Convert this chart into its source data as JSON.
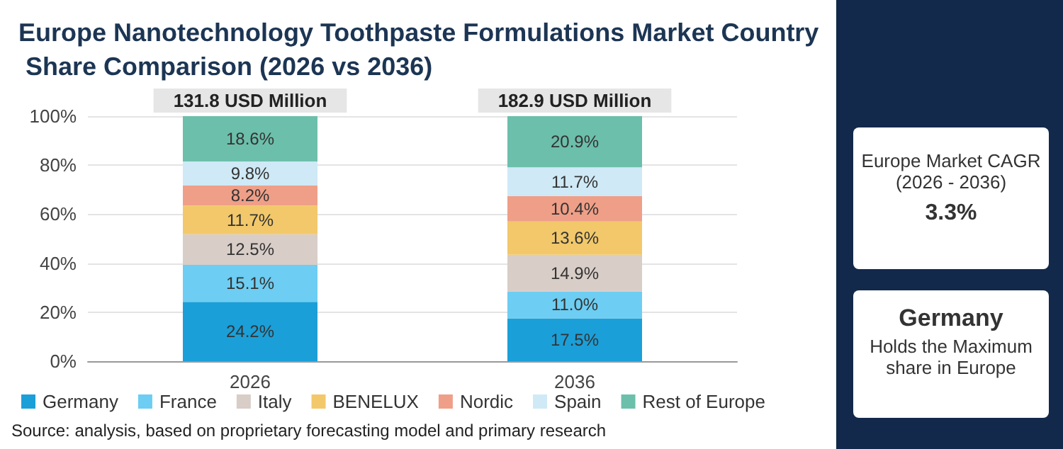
{
  "chart_data": {
    "type": "bar",
    "stacked": true,
    "title": "Europe Nanotechnology Toothpaste Formulations Market Country Share Comparison (2026 vs 2036)",
    "categories": [
      "2026",
      "2036"
    ],
    "series": [
      {
        "name": "Germany",
        "color": "#1b9fd8",
        "values": [
          24.2,
          17.5
        ],
        "value_labels": [
          "24.2%",
          "17.5%"
        ]
      },
      {
        "name": "France",
        "color": "#6dcdf2",
        "values": [
          15.1,
          11.0
        ],
        "value_labels": [
          "15.1%",
          "11.0%"
        ]
      },
      {
        "name": "Italy",
        "color": "#d8cdc7",
        "values": [
          12.5,
          14.9
        ],
        "value_labels": [
          "12.5%",
          "14.9%"
        ]
      },
      {
        "name": "BENELUX",
        "color": "#f2c86a",
        "values": [
          11.7,
          13.6
        ],
        "value_labels": [
          "11.7%",
          "13.6%"
        ]
      },
      {
        "name": "Nordic",
        "color": "#ef9f88",
        "values": [
          8.2,
          10.4
        ],
        "value_labels": [
          "8.2%",
          "10.4%"
        ]
      },
      {
        "name": "Spain",
        "color": "#cfe9f6",
        "values": [
          9.8,
          11.7
        ],
        "value_labels": [
          "9.8%",
          "11.7%"
        ]
      },
      {
        "name": "Rest of Europe",
        "color": "#6cbfab",
        "values": [
          18.6,
          20.9
        ],
        "value_labels": [
          "18.6%",
          "20.9%"
        ]
      }
    ],
    "ylim": [
      0,
      100
    ],
    "yticks": [
      {
        "value": 0,
        "label": "0%"
      },
      {
        "value": 20,
        "label": "20%"
      },
      {
        "value": 40,
        "label": "40%"
      },
      {
        "value": 60,
        "label": "60%"
      },
      {
        "value": 80,
        "label": "80%"
      },
      {
        "value": 100,
        "label": "100%"
      }
    ],
    "grid": "y",
    "legend": "bottom",
    "annotations": [
      {
        "text": "131.8 USD Million",
        "x": "2026",
        "y": 100
      },
      {
        "text": "182.9 USD Million",
        "x": "2036",
        "y": 100
      },
      "Source: analysis, based on proprietary forecasting model and primary research",
      "Europe Market CAGR",
      "(2026 - 2036)",
      "3.3%",
      "Germany",
      "Holds the Maximum share in Europe"
    ]
  }
}
